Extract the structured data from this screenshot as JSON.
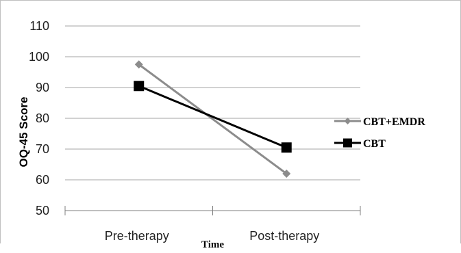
{
  "chart_data": {
    "type": "line",
    "title": "",
    "xlabel": "Time",
    "ylabel": "OQ-45 Score",
    "categories": [
      "Pre-therapy",
      "Post-therapy"
    ],
    "ylim": [
      50,
      110
    ],
    "yticks": [
      50,
      60,
      70,
      80,
      90,
      100,
      110
    ],
    "grid": true,
    "legend_position": "right",
    "series": [
      {
        "name": "CBT+EMDR",
        "values": [
          97.5,
          62
        ],
        "color": "#8c8c8c",
        "marker": "diamond"
      },
      {
        "name": "CBT",
        "values": [
          90.5,
          70.5
        ],
        "color": "#000000",
        "marker": "square"
      }
    ]
  }
}
